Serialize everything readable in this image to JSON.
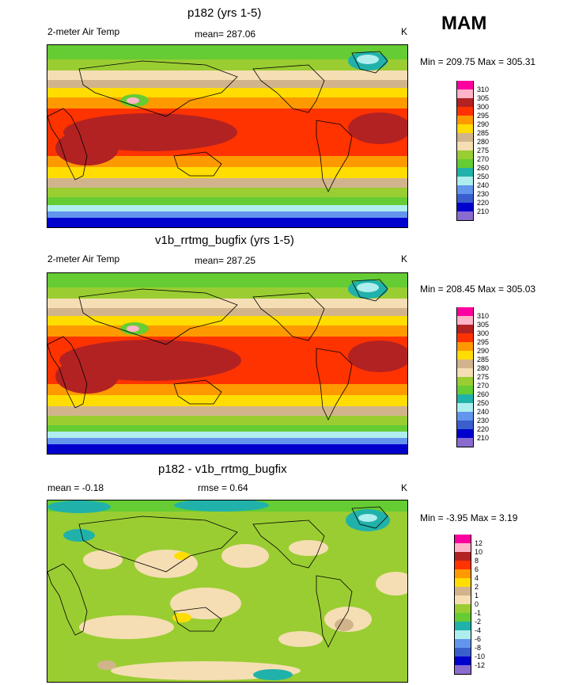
{
  "season": "MAM",
  "panels": [
    {
      "title": "p182 (yrs 1-5)",
      "left_label": "2-meter Air Temp",
      "center_label": "mean= 287.06",
      "units": "K",
      "minmax": "Min = 209.75 Max = 305.31",
      "colorbar": {
        "labels": [
          "310",
          "305",
          "300",
          "295",
          "290",
          "285",
          "280",
          "275",
          "270",
          "260",
          "250",
          "240",
          "230",
          "220",
          "210"
        ],
        "colors": [
          "#ff00a0",
          "#ffb4c8",
          "#b22222",
          "#ff3300",
          "#ff9900",
          "#ffdd00",
          "#d2b48c",
          "#f5deb3",
          "#9acd32",
          "#66cc33",
          "#20b2aa",
          "#afeeee",
          "#6495ed",
          "#3a5fcd",
          "#0000cd",
          "#8a6ccf"
        ]
      }
    },
    {
      "title": "v1b_rrtmg_bugfix (yrs 1-5)",
      "left_label": "2-meter Air Temp",
      "center_label": "mean= 287.25",
      "units": "K",
      "minmax": "Min = 208.45 Max = 305.03",
      "colorbar": {
        "labels": [
          "310",
          "305",
          "300",
          "295",
          "290",
          "285",
          "280",
          "275",
          "270",
          "260",
          "250",
          "240",
          "230",
          "220",
          "210"
        ],
        "colors": [
          "#ff00a0",
          "#ffb4c8",
          "#b22222",
          "#ff3300",
          "#ff9900",
          "#ffdd00",
          "#d2b48c",
          "#f5deb3",
          "#9acd32",
          "#66cc33",
          "#20b2aa",
          "#afeeee",
          "#6495ed",
          "#3a5fcd",
          "#0000cd",
          "#8a6ccf"
        ]
      }
    },
    {
      "title": "p182 - v1b_rrtmg_bugfix",
      "left_label": "mean =  -0.18",
      "center_label": "rmse =   0.64",
      "units": "K",
      "minmax": "Min =  -3.95 Max =   3.19",
      "colorbar": {
        "labels": [
          "12",
          "10",
          "8",
          "6",
          "4",
          "2",
          "1",
          "0",
          "-1",
          "-2",
          "-4",
          "-6",
          "-8",
          "-10",
          "-12"
        ],
        "colors": [
          "#ff00a0",
          "#ffb4c8",
          "#b22222",
          "#ff3300",
          "#ff9900",
          "#ffdd00",
          "#d2b48c",
          "#f5deb3",
          "#9acd32",
          "#66cc33",
          "#20b2aa",
          "#afeeee",
          "#6495ed",
          "#3a5fcd",
          "#0000cd",
          "#8a6ccf"
        ]
      }
    }
  ]
}
